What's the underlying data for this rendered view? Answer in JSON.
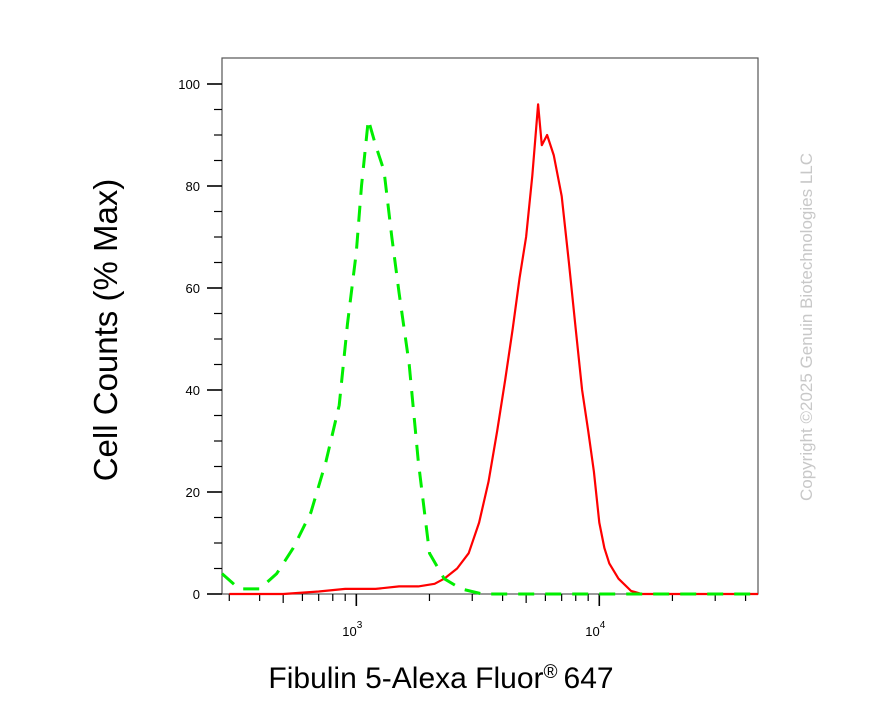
{
  "chart_data": {
    "type": "line",
    "xlabel": "Fibulin 5-Alexa Fluor",
    "xlabel_reg": "®",
    "xlabel_suffix": "647",
    "ylabel": "Cell Counts (% Max)",
    "x_scale": "log",
    "xlim": [
      280,
      45000
    ],
    "ylim": [
      0,
      100
    ],
    "y_ticks": [
      {
        "value": 0,
        "label": "0"
      },
      {
        "value": 20,
        "label": "20"
      },
      {
        "value": 40,
        "label": "40"
      },
      {
        "value": 60,
        "label": "60"
      },
      {
        "value": 80,
        "label": "80"
      },
      {
        "value": 100,
        "label": "100"
      }
    ],
    "x_ticks": [
      {
        "value": 1000,
        "base": "10",
        "exp": "3"
      },
      {
        "value": 10000,
        "base": "10",
        "exp": "4"
      }
    ],
    "grid": false,
    "legend": false,
    "colors": {
      "series1": "#ff0000",
      "series2": "#00ee00"
    },
    "series": [
      {
        "style": "solid",
        "color": "#ff0000",
        "points": [
          [
            300,
            0
          ],
          [
            500,
            0
          ],
          [
            700,
            0.5
          ],
          [
            900,
            1
          ],
          [
            1200,
            1
          ],
          [
            1500,
            1.5
          ],
          [
            1800,
            1.5
          ],
          [
            2100,
            2
          ],
          [
            2300,
            3
          ],
          [
            2600,
            5
          ],
          [
            2900,
            8
          ],
          [
            3200,
            14
          ],
          [
            3500,
            22
          ],
          [
            3800,
            32
          ],
          [
            4100,
            42
          ],
          [
            4400,
            52
          ],
          [
            4700,
            62
          ],
          [
            5000,
            70
          ],
          [
            5300,
            82
          ],
          [
            5600,
            96
          ],
          [
            5800,
            88
          ],
          [
            6100,
            90
          ],
          [
            6500,
            86
          ],
          [
            7000,
            78
          ],
          [
            7500,
            65
          ],
          [
            8000,
            52
          ],
          [
            8500,
            40
          ],
          [
            9000,
            32
          ],
          [
            9500,
            24
          ],
          [
            10000,
            14
          ],
          [
            10500,
            9
          ],
          [
            11000,
            6
          ],
          [
            12000,
            3
          ],
          [
            13500,
            0.6
          ],
          [
            15000,
            0
          ],
          [
            45000,
            0
          ]
        ]
      },
      {
        "style": "dashed",
        "color": "#00ee00",
        "points": [
          [
            280,
            4
          ],
          [
            330,
            1
          ],
          [
            400,
            1
          ],
          [
            470,
            4
          ],
          [
            550,
            9
          ],
          [
            650,
            16
          ],
          [
            750,
            26
          ],
          [
            850,
            37
          ],
          [
            920,
            53
          ],
          [
            1000,
            67
          ],
          [
            1050,
            80
          ],
          [
            1120,
            93
          ],
          [
            1200,
            88
          ],
          [
            1300,
            83
          ],
          [
            1400,
            70
          ],
          [
            1500,
            59
          ],
          [
            1650,
            45
          ],
          [
            1800,
            26
          ],
          [
            2000,
            8
          ],
          [
            2300,
            3
          ],
          [
            2700,
            1
          ],
          [
            3300,
            0
          ],
          [
            45000,
            0
          ]
        ]
      }
    ]
  },
  "watermark": "Copyright ©2025 Genuin Biotechnologies LLC"
}
